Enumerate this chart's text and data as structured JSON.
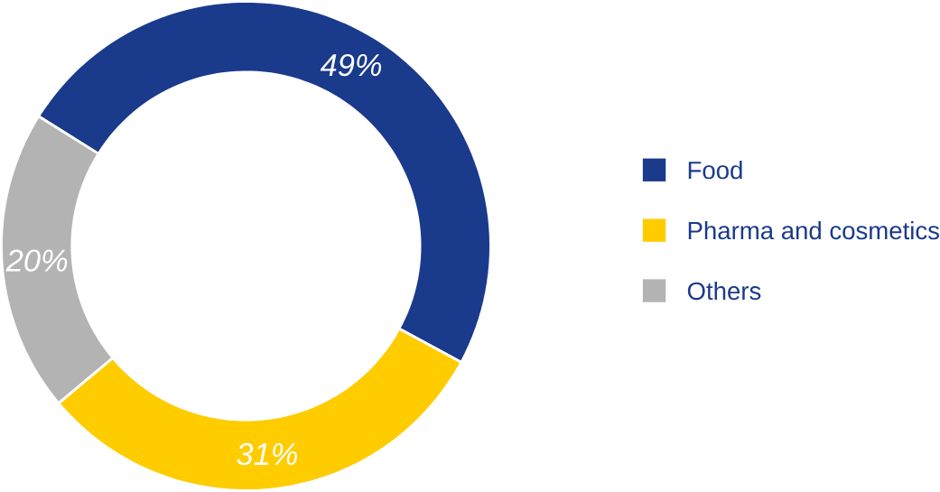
{
  "chart_data": {
    "type": "donut",
    "categories": [
      "Food",
      "Pharma and cosmetics",
      "Others"
    ],
    "values": [
      49,
      31,
      20
    ],
    "colors": [
      "#1a3a8c",
      "#ffcc00",
      "#b3b3b3"
    ],
    "value_labels": [
      "49%",
      "31%",
      "20%"
    ],
    "legend": "right"
  }
}
